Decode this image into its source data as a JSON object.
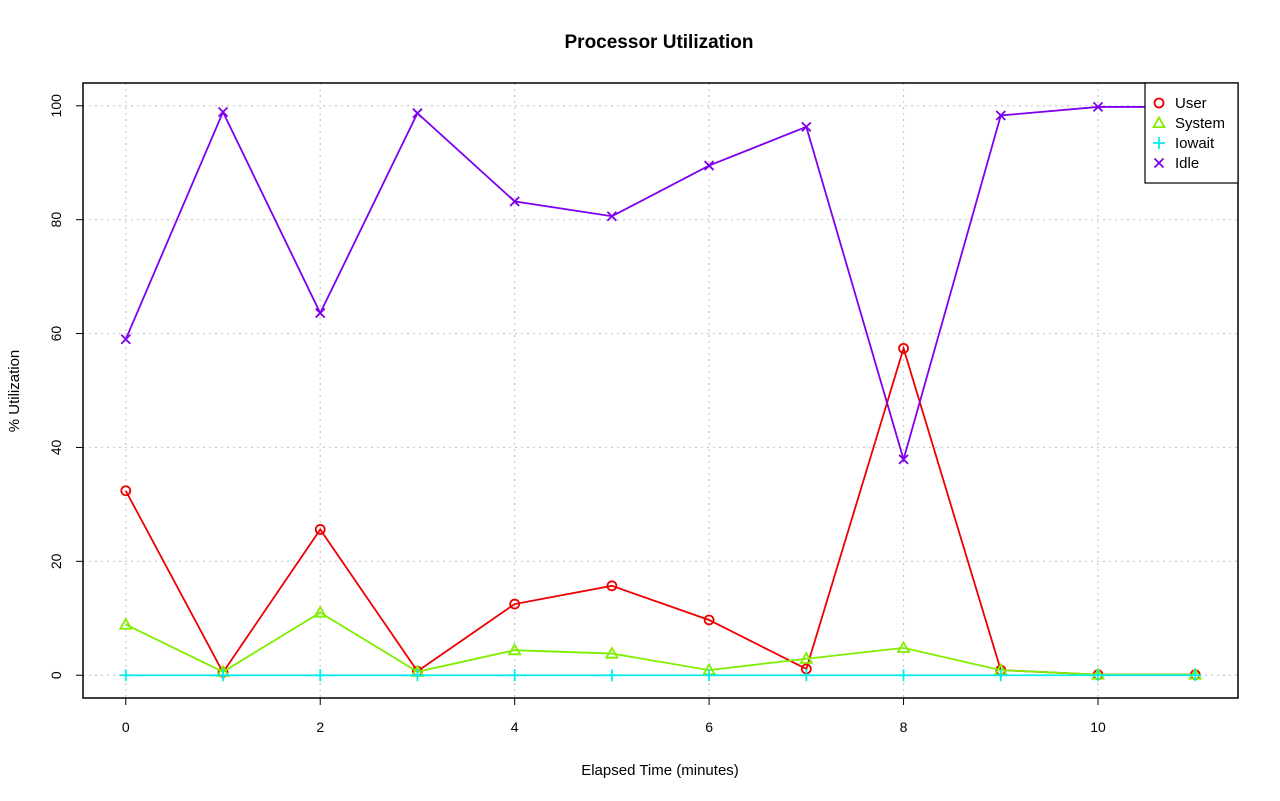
{
  "chart_data": {
    "type": "line",
    "title": "Processor Utilization",
    "xlabel": "Elapsed Time (minutes)",
    "ylabel": "% Utilization",
    "xlim": [
      -0.44,
      11.44
    ],
    "ylim": [
      -4,
      104
    ],
    "xticks": [
      0,
      2,
      4,
      6,
      8,
      10
    ],
    "yticks": [
      0,
      20,
      40,
      60,
      80,
      100
    ],
    "grid": true,
    "legend_position": "top-right",
    "x": [
      0,
      1,
      2,
      3,
      4,
      5,
      6,
      7,
      8,
      9,
      10,
      11
    ],
    "series": [
      {
        "name": "User",
        "color": "#ee0000",
        "marker": "circle",
        "values": [
          32.4,
          0.5,
          25.6,
          0.7,
          12.5,
          15.7,
          9.7,
          1.1,
          57.4,
          0.9,
          0.1,
          0.1
        ]
      },
      {
        "name": "System",
        "color": "#7fee00",
        "marker": "triangle",
        "values": [
          8.9,
          0.6,
          11.0,
          0.6,
          4.4,
          3.8,
          0.9,
          2.9,
          4.8,
          0.9,
          0.1,
          0.1
        ]
      },
      {
        "name": "Iowait",
        "color": "#00eeee",
        "marker": "plus",
        "values": [
          0,
          0,
          0,
          0,
          0,
          0,
          0,
          0,
          0,
          0,
          0,
          0
        ]
      },
      {
        "name": "Idle",
        "color": "#7f00ee",
        "marker": "cross",
        "values": [
          59.0,
          98.9,
          63.6,
          98.7,
          83.2,
          80.6,
          89.5,
          96.3,
          37.9,
          98.3,
          99.8,
          99.8
        ]
      }
    ]
  }
}
